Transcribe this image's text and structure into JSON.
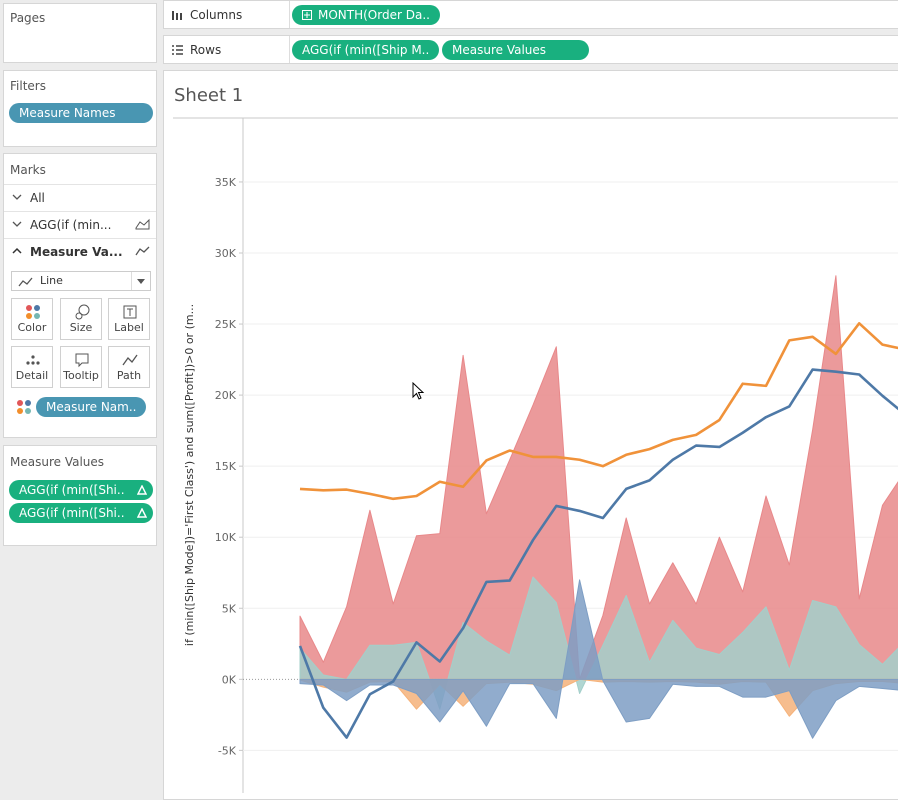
{
  "pages": {
    "title": "Pages"
  },
  "filters": {
    "title": "Filters",
    "pills": [
      "Measure Names"
    ]
  },
  "marks": {
    "title": "Marks",
    "items": [
      "All",
      "AGG(if (min...",
      "Measure Va..."
    ],
    "mark_type": "Line",
    "buttons": [
      "Color",
      "Size",
      "Label",
      "Detail",
      "Tooltip",
      "Path"
    ],
    "pill": "Measure Nam.."
  },
  "measure_values": {
    "title": "Measure Values",
    "pills": [
      "AGG(if (min([Shi..",
      "AGG(if (min([Shi.."
    ]
  },
  "columns": {
    "label": "Columns",
    "pills": [
      "MONTH(Order Da.."
    ]
  },
  "rows": {
    "label": "Rows",
    "pills": [
      "AGG(if (min([Ship M..",
      "Measure Values"
    ]
  },
  "sheet": {
    "title": "Sheet 1"
  },
  "chart_data": {
    "type": "area",
    "y_label": "if (min([Ship Mode])='First Class') and sum([Profit])>0 or (m...",
    "categories": [
      null,
      null,
      null,
      null,
      null,
      null,
      null,
      null,
      null,
      null,
      null,
      null,
      null,
      null,
      null,
      null,
      null,
      null,
      null,
      null,
      null,
      null,
      null,
      null,
      null,
      null,
      null
    ],
    "ylim": [
      -8000,
      39500
    ],
    "yticks": [
      {
        "value": -5000,
        "label": "-5K"
      },
      {
        "value": 0,
        "label": "0K"
      },
      {
        "value": 5000,
        "label": "5K"
      },
      {
        "value": 10000,
        "label": "10K"
      },
      {
        "value": 15000,
        "label": "15K"
      },
      {
        "value": 20000,
        "label": "20K"
      },
      {
        "value": 25000,
        "label": "25K"
      },
      {
        "value": 30000,
        "label": "30K"
      },
      {
        "value": 35000,
        "label": "35K"
      }
    ],
    "grid": true,
    "series": [
      {
        "type": "area",
        "color": "#e8888a",
        "values": [
          4450,
          1200,
          5100,
          11900,
          5300,
          10100,
          10250,
          22800,
          11650,
          15450,
          19300,
          23400,
          0,
          4500,
          11350,
          5300,
          8200,
          5300,
          10000,
          6150,
          12900,
          8050,
          17550,
          28400,
          5650,
          12250,
          14700
        ]
      },
      {
        "type": "area",
        "color": "#a3cfca",
        "values": [
          2200,
          300,
          0,
          2400,
          2400,
          2600,
          -2100,
          4000,
          2700,
          1700,
          7200,
          5400,
          -1000,
          2400,
          5900,
          1200,
          4150,
          2200,
          1750,
          3300,
          5100,
          650,
          5550,
          5100,
          2450,
          1050,
          2750
        ]
      },
      {
        "type": "area",
        "color": "#f5b27a",
        "values": [
          -50,
          -550,
          -900,
          -200,
          -150,
          -2100,
          -350,
          -1900,
          -300,
          -200,
          -350,
          -800,
          0,
          -200,
          -150,
          -200,
          -150,
          -200,
          -350,
          -150,
          -200,
          -2600,
          -800,
          -300,
          -150,
          -150,
          -300
        ]
      },
      {
        "type": "area",
        "color": "#7e9ec4",
        "values": [
          -300,
          -400,
          -1500,
          -400,
          -400,
          -1000,
          -3000,
          -800,
          -3300,
          -300,
          -300,
          -2750,
          7000,
          -100,
          -3000,
          -2750,
          -350,
          -500,
          -500,
          -1250,
          -1250,
          -800,
          -4150,
          -1500,
          -500,
          -650,
          -800
        ]
      },
      {
        "type": "line",
        "color": "#f0923a",
        "values": [
          13400,
          13300,
          13350,
          13050,
          12700,
          12900,
          13900,
          13550,
          15400,
          16100,
          15650,
          15650,
          15450,
          15000,
          15800,
          16200,
          16850,
          17200,
          18250,
          20800,
          20650,
          23850,
          24100,
          22900,
          25050,
          23550,
          23200
        ]
      },
      {
        "type": "line",
        "color": "#4e79a7",
        "values": [
          2350,
          -2000,
          -4100,
          -1050,
          -150,
          2600,
          1250,
          3600,
          6850,
          6950,
          9800,
          12200,
          11850,
          11350,
          13400,
          14000,
          15450,
          16450,
          16350,
          17350,
          18450,
          19200,
          21800,
          21650,
          21450,
          19950,
          18600
        ]
      }
    ]
  }
}
